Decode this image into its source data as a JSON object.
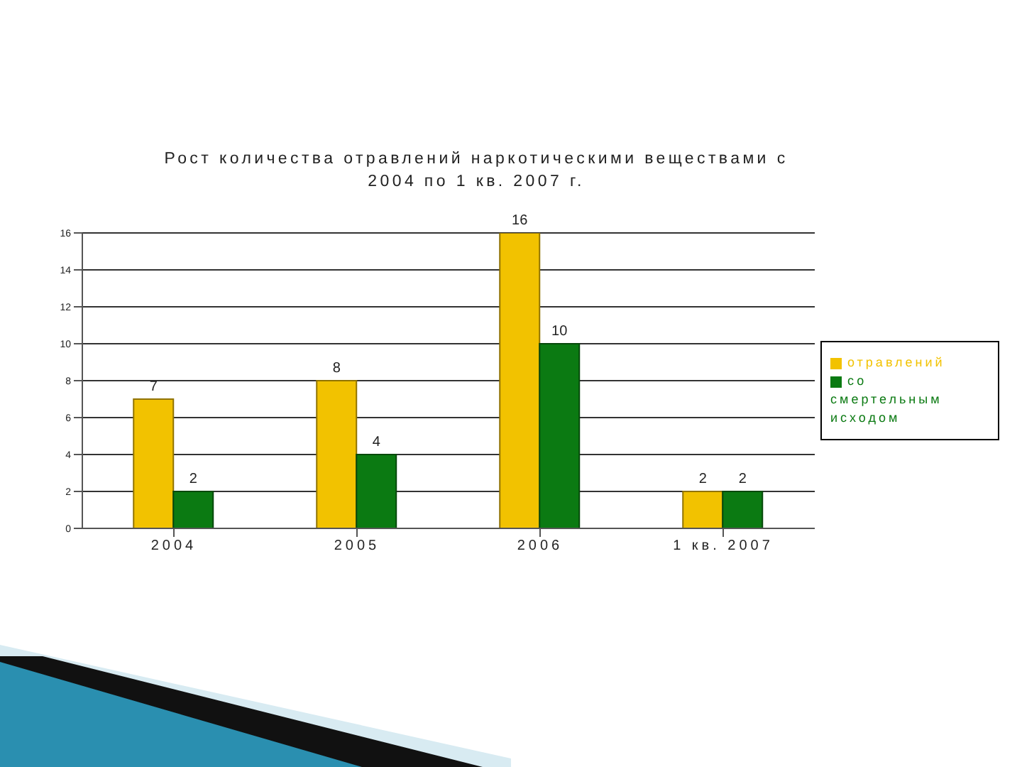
{
  "chart_data": {
    "type": "bar",
    "title": "Рост количества отравлений наркотическими веществами с 2004 по 1 кв. 2007 г.",
    "categories": [
      "2004",
      "2005",
      "2006",
      "1 кв. 2007"
    ],
    "series": [
      {
        "name": "отравлений",
        "color": "#f2c200",
        "values": [
          7,
          8,
          16,
          2
        ]
      },
      {
        "name": "со смертельным исходом",
        "color": "#0b7a12",
        "values": [
          2,
          4,
          10,
          2
        ]
      }
    ],
    "ylim": [
      0,
      16
    ],
    "yticks": [
      0,
      2,
      4,
      6,
      8,
      10,
      12,
      14,
      16
    ],
    "grid": "y",
    "legend": "right",
    "data_labels": true
  }
}
